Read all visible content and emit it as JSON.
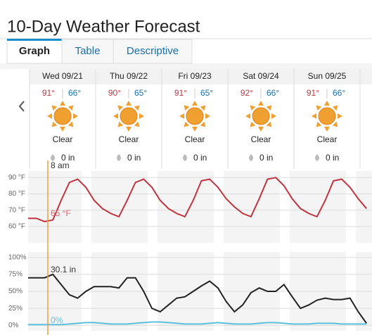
{
  "header": {
    "title": "10-Day Weather Forecast"
  },
  "tabs": [
    "Graph",
    "Table",
    "Descriptive"
  ],
  "days": [
    {
      "date": "Wed 09/21",
      "high": "91°",
      "low": "66°",
      "condition": "Clear",
      "precip": "0 in"
    },
    {
      "date": "Thu 09/22",
      "high": "90°",
      "low": "65°",
      "condition": "Clear",
      "precip": "0 in"
    },
    {
      "date": "Fri 09/23",
      "high": "91°",
      "low": "65°",
      "condition": "Clear",
      "precip": "0 in"
    },
    {
      "date": "Sat 09/24",
      "high": "92°",
      "low": "66°",
      "condition": "Clear",
      "precip": "0 in"
    },
    {
      "date": "Sun 09/25",
      "high": "91°",
      "low": "66°",
      "condition": "Clear",
      "precip": "0 in"
    }
  ],
  "temperature_graph": {
    "type": "line",
    "x": [
      0,
      3,
      6,
      9,
      12,
      15,
      18,
      21,
      24,
      27,
      30,
      33,
      36,
      39,
      42,
      45,
      48,
      51,
      54,
      57,
      60,
      63,
      66,
      69,
      72,
      75,
      78,
      81,
      84,
      87,
      90,
      93,
      96,
      99,
      102,
      105,
      108,
      111,
      114,
      117,
      120,
      123
    ],
    "series": [
      {
        "color": "#c0343f",
        "values": [
          65,
          65,
          63,
          64,
          76,
          87,
          89,
          84,
          76,
          71,
          68,
          66,
          76,
          87,
          89,
          84,
          76,
          71,
          68,
          66,
          76,
          88,
          89,
          84,
          77,
          72,
          68,
          66,
          77,
          89,
          90,
          85,
          77,
          71,
          68,
          66,
          76,
          88,
          89,
          84,
          77,
          71
        ]
      }
    ],
    "xlim": [
      0,
      125
    ],
    "ylim": [
      50,
      94
    ],
    "yticks": [
      {
        "value": 60,
        "label": "60 °F"
      },
      {
        "value": 70,
        "label": "70 °F"
      },
      {
        "value": 80,
        "label": "80 °F"
      },
      {
        "value": 90,
        "label": "90 °F"
      }
    ],
    "annotations": [
      "8 am",
      "65 °F"
    ]
  },
  "percent_graph": {
    "type": "line",
    "x": [
      0,
      3,
      6,
      9,
      12,
      15,
      18,
      21,
      24,
      27,
      30,
      33,
      36,
      39,
      42,
      45,
      48,
      51,
      54,
      57,
      60,
      63,
      66,
      69,
      72,
      75,
      78,
      81,
      84,
      87,
      90,
      93,
      96,
      99,
      102,
      105,
      108,
      111,
      114,
      117,
      120,
      123
    ],
    "series": [
      {
        "color": "#222222",
        "values": [
          70,
          70,
          70,
          75,
          60,
          45,
          40,
          50,
          57,
          57,
          57,
          55,
          70,
          70,
          50,
          25,
          20,
          30,
          40,
          42,
          50,
          58,
          65,
          55,
          35,
          20,
          30,
          48,
          55,
          50,
          50,
          60,
          42,
          25,
          30,
          37,
          40,
          38,
          38,
          40,
          20,
          3
        ]
      },
      {
        "color": "#5bc0de",
        "values": [
          1,
          1,
          1,
          1,
          1,
          2,
          3,
          4,
          4,
          3,
          2,
          2,
          2,
          3,
          4,
          5,
          5,
          4,
          3,
          2,
          2,
          2,
          3,
          4,
          3,
          2,
          2,
          2,
          3,
          4,
          4,
          3,
          2,
          2,
          2,
          3,
          3,
          3,
          2,
          2,
          2,
          2
        ]
      }
    ],
    "xlim": [
      0,
      125
    ],
    "ylim": [
      -8,
      108
    ],
    "yticks": [
      {
        "value": 0,
        "label": "0%"
      },
      {
        "value": 25,
        "label": "25%"
      },
      {
        "value": 50,
        "label": "50%"
      },
      {
        "value": 75,
        "label": "75%"
      },
      {
        "value": 100,
        "label": "100%"
      }
    ],
    "annotations": [
      "30.1 in",
      "0%"
    ]
  }
}
